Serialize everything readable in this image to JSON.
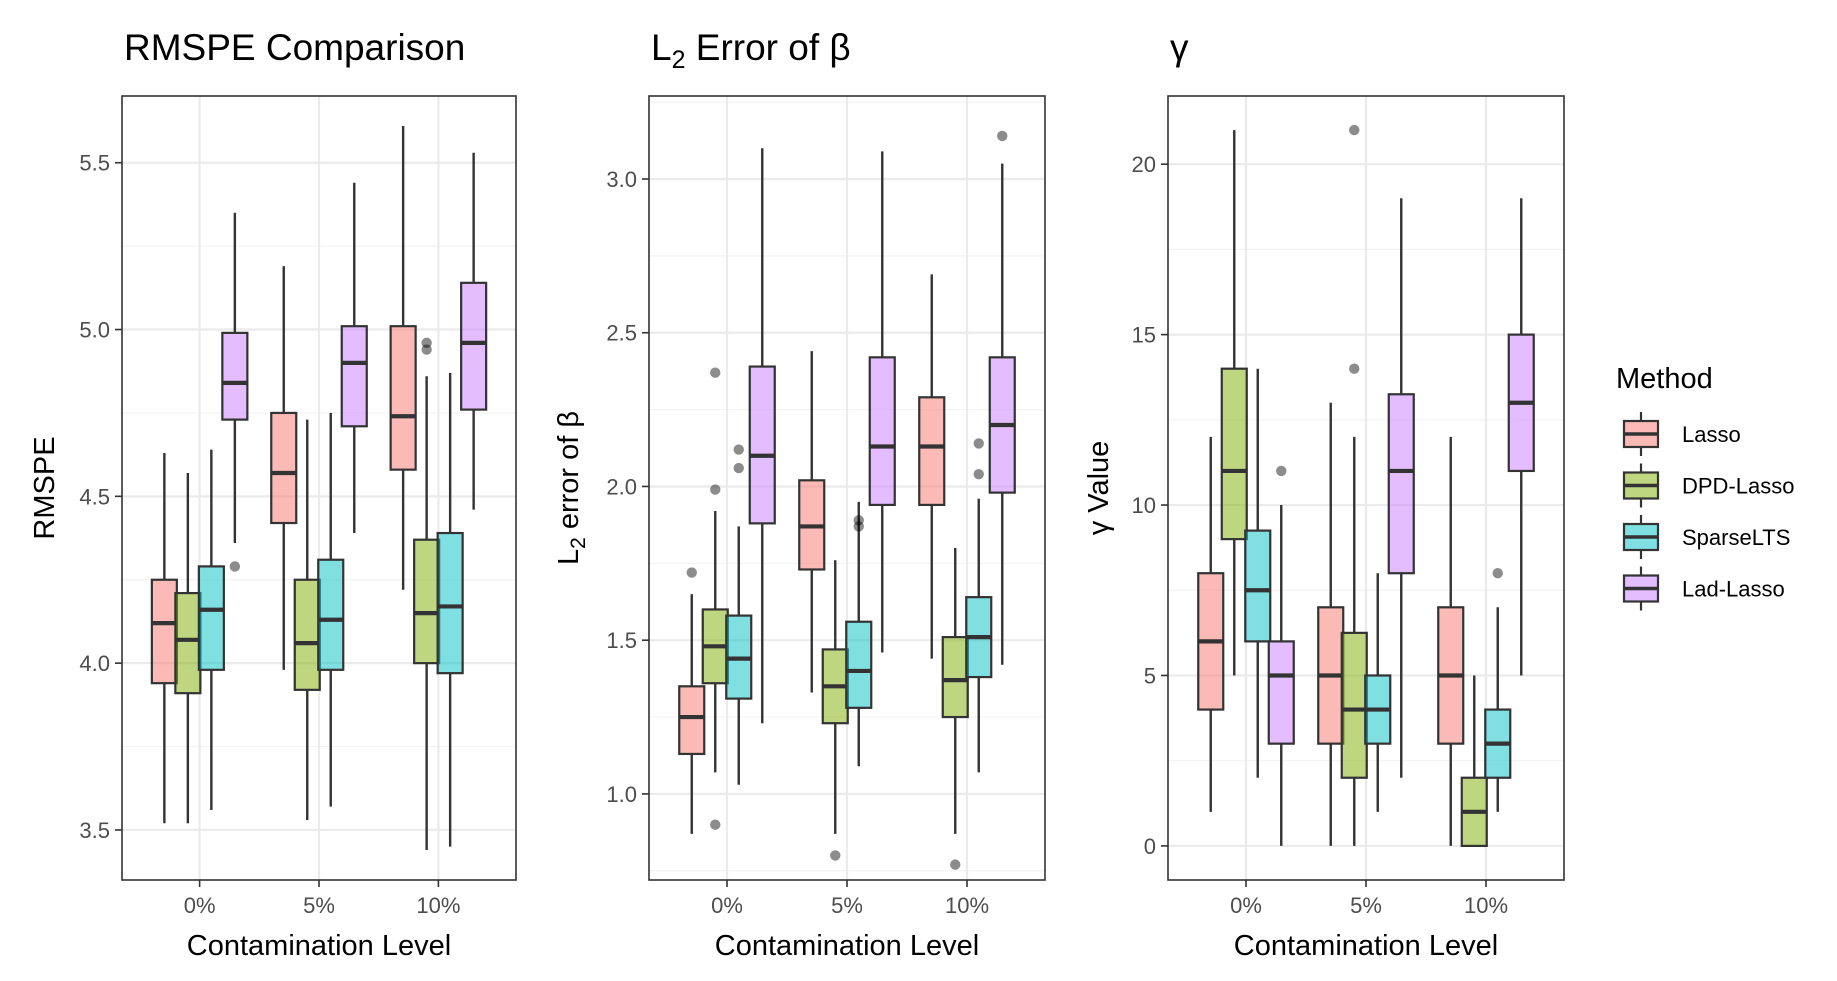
{
  "chart_data": [
    {
      "type": "boxplot",
      "title": "RMSPE Comparison",
      "xlabel": "Contamination Level",
      "ylabel": "RMSPE",
      "ylim": [
        3.35,
        5.7
      ],
      "yticks": [
        "3.5",
        "4.0",
        "4.5",
        "5.0",
        "5.5"
      ],
      "categories": [
        "0%",
        "5%",
        "10%"
      ],
      "series": [
        {
          "name": "Lasso",
          "boxes": [
            {
              "min": 3.52,
              "q1": 3.94,
              "median": 4.12,
              "q3": 4.25,
              "max": 4.63,
              "outliers": []
            },
            {
              "min": 3.98,
              "q1": 4.42,
              "median": 4.57,
              "q3": 4.75,
              "max": 5.19,
              "outliers": []
            },
            {
              "min": 4.22,
              "q1": 4.58,
              "median": 4.74,
              "q3": 5.01,
              "max": 5.61,
              "outliers": []
            }
          ]
        },
        {
          "name": "DPD-Lasso",
          "boxes": [
            {
              "min": 3.52,
              "q1": 3.91,
              "median": 4.07,
              "q3": 4.21,
              "max": 4.57,
              "outliers": []
            },
            {
              "min": 3.53,
              "q1": 3.92,
              "median": 4.06,
              "q3": 4.25,
              "max": 4.73,
              "outliers": []
            },
            {
              "min": 3.44,
              "q1": 4.0,
              "median": 4.15,
              "q3": 4.37,
              "max": 4.86,
              "outliers": [
                4.94,
                4.96
              ]
            }
          ]
        },
        {
          "name": "SparseLTS",
          "boxes": [
            {
              "min": 3.56,
              "q1": 3.98,
              "median": 4.16,
              "q3": 4.29,
              "max": 4.64,
              "outliers": []
            },
            {
              "min": 3.57,
              "q1": 3.98,
              "median": 4.13,
              "q3": 4.31,
              "max": 4.75,
              "outliers": []
            },
            {
              "min": 3.45,
              "q1": 3.97,
              "median": 4.17,
              "q3": 4.39,
              "max": 4.87,
              "outliers": []
            }
          ]
        },
        {
          "name": "Lad-Lasso",
          "boxes": [
            {
              "min": 4.36,
              "q1": 4.73,
              "median": 4.84,
              "q3": 4.99,
              "max": 5.35,
              "outliers": [
                4.29
              ]
            },
            {
              "min": 4.39,
              "q1": 4.71,
              "median": 4.9,
              "q3": 5.01,
              "max": 5.44,
              "outliers": []
            },
            {
              "min": 4.46,
              "q1": 4.76,
              "median": 4.96,
              "q3": 5.14,
              "max": 5.53,
              "outliers": []
            }
          ]
        }
      ]
    },
    {
      "type": "boxplot",
      "title_main": "L",
      "title_sub": "2",
      "title_rest": " Error of β",
      "xlabel": "Contamination Level",
      "ylabel_main": "L",
      "ylabel_sub": "2",
      "ylabel_rest": " error of β",
      "ylim": [
        0.72,
        3.27
      ],
      "yticks": [
        "1.0",
        "1.5",
        "2.0",
        "2.5",
        "3.0"
      ],
      "categories": [
        "0%",
        "5%",
        "10%"
      ],
      "series": [
        {
          "name": "Lasso",
          "boxes": [
            {
              "min": 0.87,
              "q1": 1.13,
              "median": 1.25,
              "q3": 1.35,
              "max": 1.65,
              "outliers": [
                1.72
              ]
            },
            {
              "min": 1.33,
              "q1": 1.73,
              "median": 1.87,
              "q3": 2.02,
              "max": 2.44,
              "outliers": []
            },
            {
              "min": 1.44,
              "q1": 1.94,
              "median": 2.13,
              "q3": 2.29,
              "max": 2.69,
              "outliers": []
            }
          ]
        },
        {
          "name": "DPD-Lasso",
          "boxes": [
            {
              "min": 1.07,
              "q1": 1.36,
              "median": 1.48,
              "q3": 1.6,
              "max": 1.92,
              "outliers": [
                0.9,
                1.99,
                2.37
              ]
            },
            {
              "min": 0.87,
              "q1": 1.23,
              "median": 1.35,
              "q3": 1.47,
              "max": 1.76,
              "outliers": [
                0.8
              ]
            },
            {
              "min": 0.87,
              "q1": 1.25,
              "median": 1.37,
              "q3": 1.51,
              "max": 1.8,
              "outliers": [
                0.77
              ]
            }
          ]
        },
        {
          "name": "SparseLTS",
          "boxes": [
            {
              "min": 1.03,
              "q1": 1.31,
              "median": 1.44,
              "q3": 1.58,
              "max": 1.87,
              "outliers": [
                2.06,
                2.12
              ]
            },
            {
              "min": 1.09,
              "q1": 1.28,
              "median": 1.4,
              "q3": 1.56,
              "max": 1.95,
              "outliers": [
                1.87,
                1.89
              ]
            },
            {
              "min": 1.07,
              "q1": 1.38,
              "median": 1.51,
              "q3": 1.64,
              "max": 1.96,
              "outliers": [
                2.04,
                2.14
              ]
            }
          ]
        },
        {
          "name": "Lad-Lasso",
          "boxes": [
            {
              "min": 1.23,
              "q1": 1.88,
              "median": 2.1,
              "q3": 2.39,
              "max": 3.1,
              "outliers": []
            },
            {
              "min": 1.46,
              "q1": 1.94,
              "median": 2.13,
              "q3": 2.42,
              "max": 3.09,
              "outliers": []
            },
            {
              "min": 1.42,
              "q1": 1.98,
              "median": 2.2,
              "q3": 2.42,
              "max": 3.05,
              "outliers": [
                3.14
              ]
            }
          ]
        }
      ]
    },
    {
      "type": "boxplot",
      "title": "γ",
      "xlabel": "Contamination Level",
      "ylabel": "γ Value",
      "ylim": [
        -1,
        22
      ],
      "yticks": [
        "0",
        "5",
        "10",
        "15",
        "20"
      ],
      "categories": [
        "0%",
        "5%",
        "10%"
      ],
      "series": [
        {
          "name": "Lasso",
          "boxes": [
            {
              "min": 1,
              "q1": 4,
              "median": 6,
              "q3": 8,
              "max": 12,
              "outliers": []
            },
            {
              "min": 0,
              "q1": 3,
              "median": 5,
              "q3": 7,
              "max": 13,
              "outliers": []
            },
            {
              "min": 0,
              "q1": 3,
              "median": 5,
              "q3": 7,
              "max": 12,
              "outliers": []
            }
          ]
        },
        {
          "name": "DPD-Lasso",
          "boxes": [
            {
              "min": 5,
              "q1": 9,
              "median": 11,
              "q3": 14,
              "max": 21,
              "outliers": []
            },
            {
              "min": 0,
              "q1": 2,
              "median": 4,
              "q3": 6.25,
              "max": 12,
              "outliers": [
                14,
                21
              ]
            },
            {
              "min": 0,
              "q1": 0,
              "median": 1,
              "q3": 2,
              "max": 5,
              "outliers": []
            }
          ]
        },
        {
          "name": "SparseLTS",
          "boxes": [
            {
              "min": 2,
              "q1": 6,
              "median": 7.5,
              "q3": 9.25,
              "max": 14,
              "outliers": []
            },
            {
              "min": 1,
              "q1": 3,
              "median": 4,
              "q3": 5,
              "max": 8,
              "outliers": []
            },
            {
              "min": 1,
              "q1": 2,
              "median": 3,
              "q3": 4,
              "max": 7,
              "outliers": [
                8
              ]
            }
          ]
        },
        {
          "name": "Lad-Lasso",
          "boxes": [
            {
              "min": 0,
              "q1": 3,
              "median": 5,
              "q3": 6,
              "max": 10,
              "outliers": [
                11
              ]
            },
            {
              "min": 2,
              "q1": 8,
              "median": 11,
              "q3": 13.25,
              "max": 19,
              "outliers": []
            },
            {
              "min": 5,
              "q1": 11,
              "median": 13,
              "q3": 15,
              "max": 19,
              "outliers": []
            }
          ]
        }
      ]
    }
  ],
  "legend": {
    "title": "Method",
    "items": [
      {
        "name": "Lasso",
        "color": "#F8766D"
      },
      {
        "name": "DPD-Lasso",
        "color": "#7CAE00"
      },
      {
        "name": "SparseLTS",
        "color": "#00BFC4"
      },
      {
        "name": "Lad-Lasso",
        "color": "#C77CFF"
      }
    ]
  }
}
